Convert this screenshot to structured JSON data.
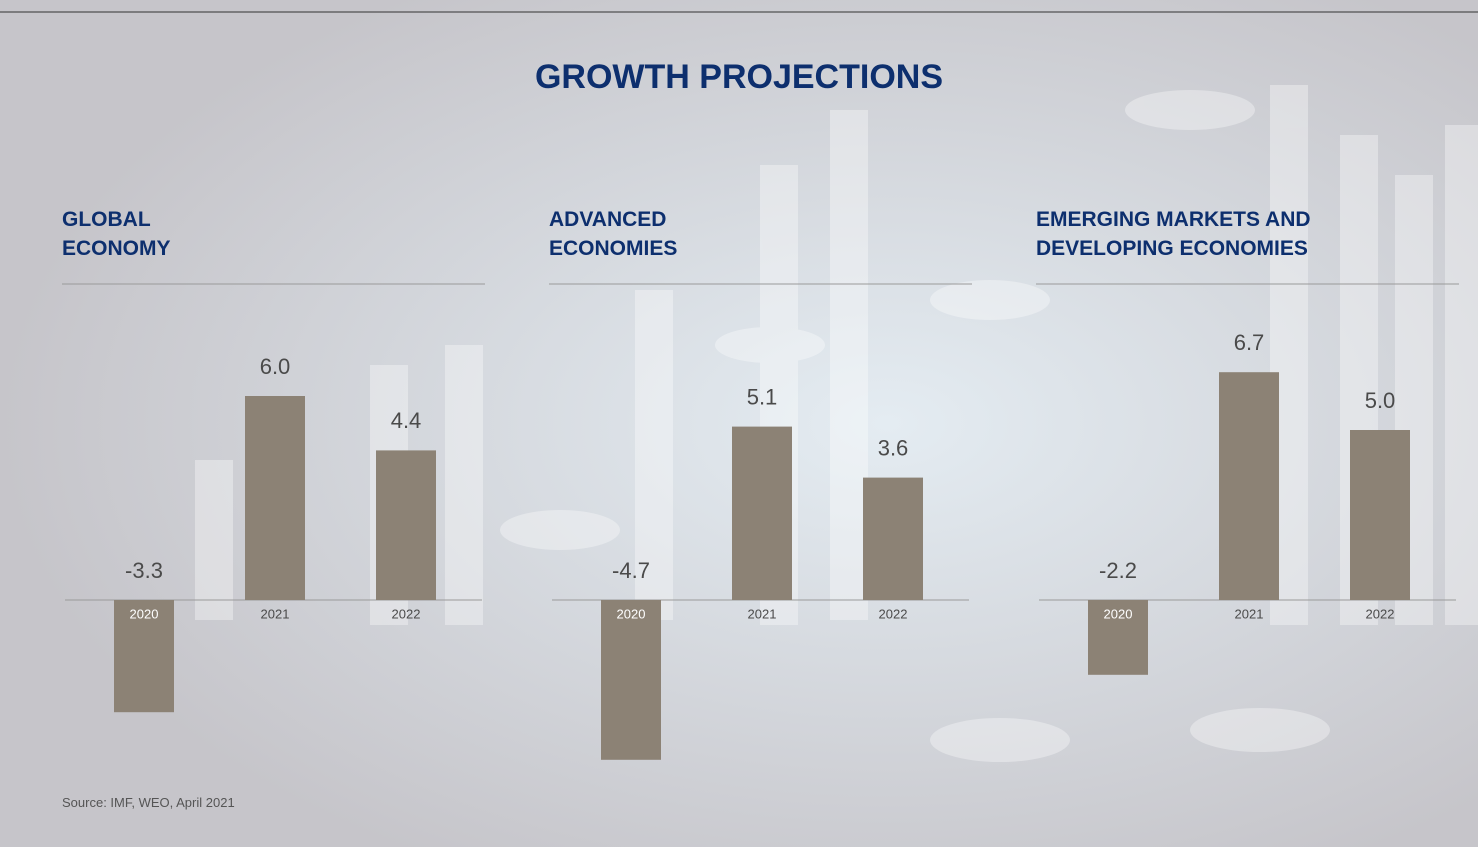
{
  "title": "GROWTH PROJECTIONS",
  "chart_data": [
    {
      "type": "bar",
      "title": "GLOBAL ECONOMY",
      "categories": [
        "2020",
        "2021",
        "2022"
      ],
      "values": [
        -3.3,
        6.0,
        4.4
      ],
      "value_labels": [
        "-3.3",
        "6.0",
        "4.4"
      ],
      "color": "#8c8275",
      "ylim": [
        -5,
        7
      ]
    },
    {
      "type": "bar",
      "title": "ADVANCED ECONOMIES",
      "categories": [
        "2020",
        "2021",
        "2022"
      ],
      "values": [
        -4.7,
        5.1,
        3.6
      ],
      "value_labels": [
        "-4.7",
        "5.1",
        "3.6"
      ],
      "color": "#8c8275",
      "ylim": [
        -5,
        7
      ]
    },
    {
      "type": "bar",
      "title": "EMERGING MARKETS AND DEVELOPING ECONOMIES",
      "categories": [
        "2020",
        "2021",
        "2022"
      ],
      "values": [
        -2.2,
        6.7,
        5.0
      ],
      "value_labels": [
        "-2.2",
        "6.7",
        "5.0"
      ],
      "color": "#8c8275",
      "ylim": [
        -5,
        7
      ]
    }
  ],
  "source": "Source: IMF, WEO, April 2021"
}
